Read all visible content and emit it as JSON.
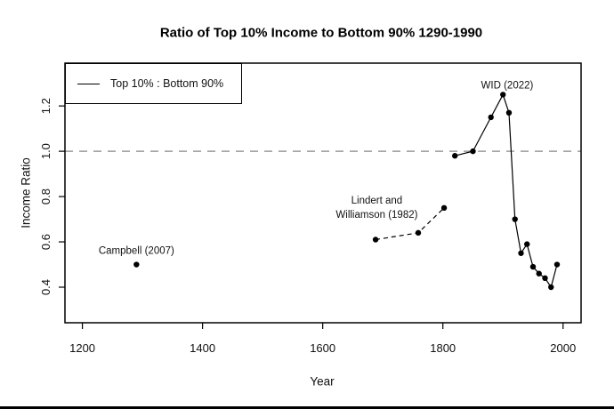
{
  "chart_data": {
    "type": "line",
    "title": "Ratio of Top 10% Income to Bottom 90% 1290-1990",
    "xlabel": "Year",
    "ylabel": "Income Ratio",
    "x_ticks": [
      1200,
      1400,
      1600,
      1800,
      2000
    ],
    "y_ticks": [
      0.4,
      0.6,
      0.8,
      1.0,
      1.2
    ],
    "xlim": [
      1171,
      2030
    ],
    "ylim": [
      0.243,
      1.389
    ],
    "grid": false,
    "reference_line": {
      "y": 1.0,
      "style": "dashed",
      "color": "#9a9a9a"
    },
    "legend": {
      "position": "topleft",
      "entries": [
        {
          "label": "Top 10% : Bottom 90%",
          "line": "solid",
          "color": "#000000"
        }
      ]
    },
    "series": [
      {
        "name": "Campbell (2007)",
        "line": "none",
        "points": [
          [
            1290,
            0.5
          ]
        ]
      },
      {
        "name": "Lindert and Williamson (1982)",
        "line": "dashed",
        "points": [
          [
            1688,
            0.61
          ],
          [
            1759,
            0.64
          ],
          [
            1802,
            0.75
          ]
        ]
      },
      {
        "name": "WID (2022)",
        "line": "solid",
        "points": [
          [
            1820,
            0.98
          ],
          [
            1850,
            1.0
          ],
          [
            1880,
            1.15
          ],
          [
            1900,
            1.25
          ],
          [
            1910,
            1.17
          ],
          [
            1920,
            0.7
          ],
          [
            1930,
            0.55
          ],
          [
            1940,
            0.59
          ],
          [
            1950,
            0.49
          ],
          [
            1960,
            0.46
          ],
          [
            1970,
            0.44
          ],
          [
            1980,
            0.4
          ],
          [
            1990,
            0.5
          ]
        ]
      }
    ],
    "annotations": [
      {
        "x": 1290,
        "y": 0.56,
        "lines": [
          "Campbell (2007)"
        ]
      },
      {
        "x": 1690,
        "y": 0.75,
        "lines": [
          "Lindert and",
          "Williamson (1982)"
        ]
      },
      {
        "x": 1907,
        "y": 1.29,
        "lines": [
          "WID (2022)"
        ]
      }
    ],
    "colors": {
      "foreground": "#000000",
      "reference": "#9a9a9a",
      "background": "#ffffff"
    }
  }
}
